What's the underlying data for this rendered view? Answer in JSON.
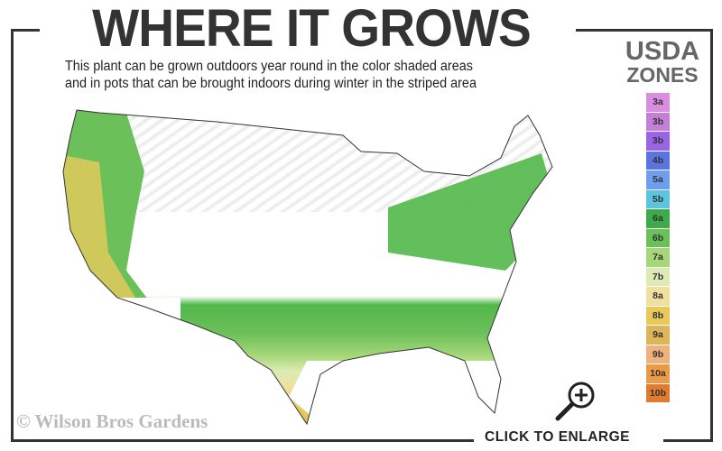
{
  "title": "WHERE IT GROWS",
  "subtitle_line1": "This plant can be grown outdoors year round in the color shaded areas",
  "subtitle_line2": "and in pots that can be brought indoors during winter in the striped area",
  "legend": {
    "title_line1": "USDA",
    "title_line2": "ZONES",
    "zones": [
      {
        "label": "3a",
        "color": "#d98ee0"
      },
      {
        "label": "3b",
        "color": "#c67fd9"
      },
      {
        "label": "3b",
        "color": "#9b63e6"
      },
      {
        "label": "4b",
        "color": "#5b74e0"
      },
      {
        "label": "5a",
        "color": "#6f9ef0"
      },
      {
        "label": "5b",
        "color": "#5cc4dc"
      },
      {
        "label": "6a",
        "color": "#3faa4c"
      },
      {
        "label": "6b",
        "color": "#6cc05a"
      },
      {
        "label": "7a",
        "color": "#a6d779"
      },
      {
        "label": "7b",
        "color": "#dcebb3"
      },
      {
        "label": "8a",
        "color": "#efe0a0"
      },
      {
        "label": "8b",
        "color": "#e8c95a"
      },
      {
        "label": "9a",
        "color": "#ddb65a"
      },
      {
        "label": "9b",
        "color": "#f0b27c"
      },
      {
        "label": "10a",
        "color": "#ec9a45"
      },
      {
        "label": "10b",
        "color": "#e07b30"
      }
    ]
  },
  "copyright": "© Wilson Bros Gardens",
  "enlarge_label": "CLICK TO ENLARGE",
  "icons": {
    "enlarge": "magnifier-plus-icon"
  }
}
